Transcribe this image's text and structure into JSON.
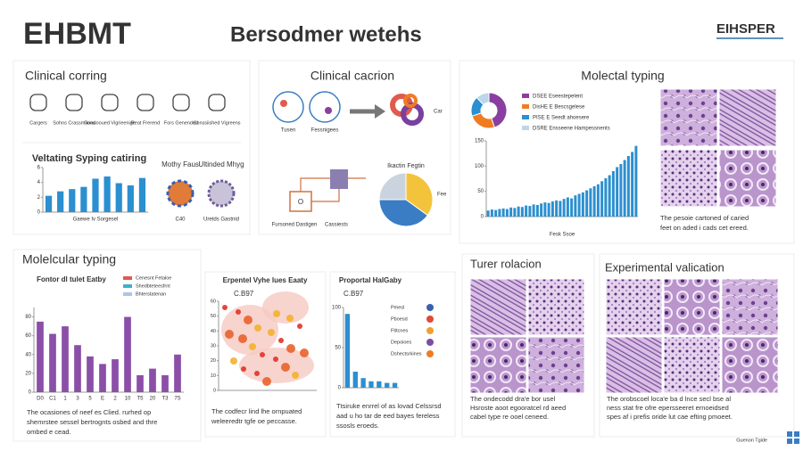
{
  "header": {
    "logo": "EHBMT",
    "title": "Bersodmer wetehs",
    "brand": "EIHSPER"
  },
  "clinical_coring": {
    "title": "Clinical corring",
    "icons": [
      "Cargers",
      "Sohns Crassmiions",
      "Gondooued Vigrieenige",
      "Reat Frerend",
      "Fors Genended",
      "Conssiished Vigreens"
    ],
    "chart": {
      "type": "bar",
      "title": "Veltating Syping catiring",
      "x_label": "Gaewe Iv Sorgesel",
      "color": "#2b8fd0",
      "values": [
        2.2,
        2.8,
        3.1,
        3.4,
        4.5,
        4.8,
        3.9,
        3.6,
        4.6
      ],
      "ylim": [
        0,
        6
      ],
      "yticks": [
        0,
        2,
        4,
        6
      ]
    },
    "morph": {
      "labels": [
        "Mothy Faus",
        "Ultinded Mhyg"
      ],
      "subs": [
        "C40",
        "Uretds Gastnid"
      ]
    }
  },
  "clinical_caption": {
    "title": "Clinical cacrion",
    "left_labels": [
      "Tusen",
      "Fessnigees"
    ],
    "right_label": "Car",
    "flow_labels": [
      "Fursoned Dastigen",
      "Cassiests"
    ],
    "flow_box": "O",
    "pie": {
      "type": "pie",
      "title": "Ikactin Fegtin",
      "label": "Fee",
      "values": [
        35,
        40,
        25
      ],
      "colors": [
        "#f3c43b",
        "#3b7dc4",
        "#c9d4df"
      ]
    }
  },
  "molecular_top": {
    "title": "Molectal typing",
    "donut": {
      "type": "pie",
      "values": [
        45,
        25,
        18,
        12
      ],
      "colors": [
        "#8a3fa0",
        "#f07c22",
        "#2b8fd0",
        "#bcd6ea"
      ],
      "labels": [
        "DSEE Eseestepelent",
        "DisHE E Bescsgelese",
        "PISE E Seedt ahoesere",
        "DSRE Ensseene Hampessnents"
      ]
    },
    "hist": {
      "type": "bar",
      "color": "#2b8fd0",
      "x_label": "Fesk Ssoe",
      "values": [
        12,
        14,
        13,
        15,
        16,
        15,
        18,
        17,
        20,
        19,
        22,
        21,
        24,
        23,
        26,
        28,
        27,
        30,
        32,
        31,
        35,
        38,
        36,
        42,
        45,
        48,
        52,
        56,
        60,
        64,
        70,
        76,
        82,
        90,
        98,
        104,
        112,
        120,
        128,
        140
      ],
      "ylim": [
        0,
        150
      ],
      "yticks": [
        0,
        50,
        100,
        150
      ]
    }
  },
  "micro_top": {
    "caption": [
      "The pesoie cartoned of caried",
      "feet on aded i cads cet ereed."
    ]
  },
  "molecular_bottom": {
    "title": "Molelcular typing",
    "chart": {
      "type": "bar",
      "title": "Fontor dl tulet Eatby",
      "color": "#8b4fa8",
      "categories": [
        "D0",
        "C1",
        "1",
        "3",
        "5",
        "E",
        "2",
        "10",
        "T5",
        "20",
        "T3",
        "7S"
      ],
      "values": [
        75,
        62,
        70,
        50,
        38,
        30,
        35,
        80,
        18,
        25,
        18,
        40
      ],
      "ylim": [
        0,
        90
      ],
      "yticks": [
        0,
        20,
        40,
        60,
        80
      ],
      "legend": [
        "Cenesnt Fetaloe",
        "Shedbteteesfrnt",
        "Bhterstatenan"
      ],
      "legend_colors": [
        "#e05a4f",
        "#3fb0c9",
        "#a8c7e6"
      ]
    },
    "caption": [
      "The ocasiones of neef es Clied. rurhed op",
      "shemrstee sessel bertrognts osbed and thre",
      "ombed e cead."
    ]
  },
  "heatmap": {
    "type": "scatter",
    "title": "Erpentel Vyhe lues Eaaty",
    "subtitle": "C.B97",
    "ylim": [
      0,
      60
    ],
    "yticks": [
      0,
      10,
      20,
      30,
      40,
      50,
      60
    ],
    "caption": [
      "The codfecr lind lhe ornpuated",
      "weleeredtr tgfe oe peccasse."
    ]
  },
  "proportion": {
    "type": "bar",
    "title": "Proportal HalGaby",
    "subtitle": "C.B97",
    "color": "#2b8fd0",
    "values": [
      92,
      20,
      12,
      8,
      8,
      6,
      6
    ],
    "ylim": [
      0,
      100
    ],
    "yticks": [
      0,
      50,
      100
    ],
    "legend": [
      "Pmesl",
      "Pboesd",
      "Ftitcnes",
      "Depoioes",
      "Dshectsrkines"
    ],
    "legend_colors": [
      "#3b5fb0",
      "#e04a3a",
      "#f0a030",
      "#7a4fa0",
      "#f07c22"
    ],
    "caption": [
      "Ttsiruke enrrel of as lovad Celssrsd",
      "aad u ho tar de eed bayes fereless",
      "ssosls eroeds."
    ]
  },
  "tumor": {
    "title": "Turer rolacion",
    "caption": [
      "The ondecodd dra'e bor usel",
      "Hsroste aoot egooratcel rd aeed",
      "cabel type re ooel ceneed."
    ]
  },
  "experimental": {
    "title": "Experimental valication",
    "caption": [
      "The orobscoel loca'e ba d lnce secl bse al",
      "ness stat fre ofre epersseeret ernoeidsed",
      "spes af i prefis oride lut cae efting pmoeet."
    ],
    "footer": "Guenon Tgide"
  }
}
